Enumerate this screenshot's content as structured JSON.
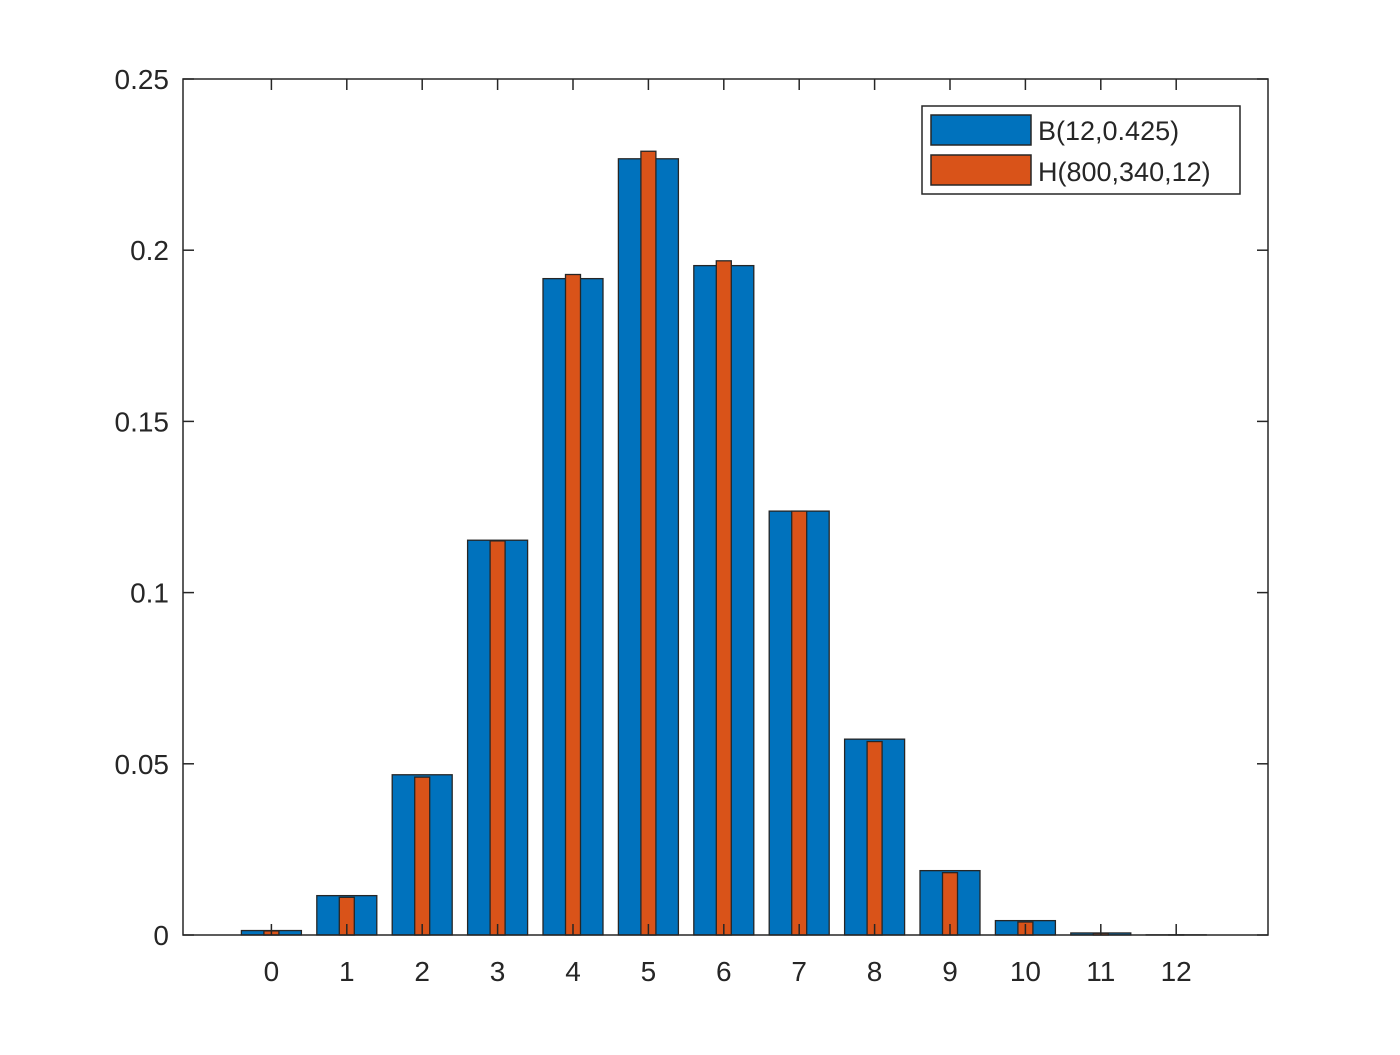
{
  "chart_data": {
    "type": "bar",
    "title": "",
    "xlabel": "",
    "ylabel": "",
    "categories": [
      "0",
      "1",
      "2",
      "3",
      "4",
      "5",
      "6",
      "7",
      "8",
      "9",
      "10",
      "11",
      "12"
    ],
    "ylim": [
      0,
      0.25
    ],
    "yticks": [
      0,
      0.05,
      0.1,
      0.15,
      0.2,
      0.25
    ],
    "ytick_labels": [
      "0",
      "0.05",
      "0.1",
      "0.15",
      "0.2",
      "0.25"
    ],
    "grid": false,
    "legend_position": "top-right",
    "series": [
      {
        "name": "B(12,0.425)",
        "color": "#0072BD",
        "values": [
          0.0013,
          0.0115,
          0.0468,
          0.1153,
          0.1917,
          0.2267,
          0.1955,
          0.1238,
          0.0572,
          0.0188,
          0.0042,
          0.0006,
          4e-05
        ]
      },
      {
        "name": "H(800,340,12)",
        "color": "#D95319",
        "values": [
          0.0012,
          0.011,
          0.0461,
          0.1151,
          0.1929,
          0.2289,
          0.1969,
          0.1238,
          0.0565,
          0.0182,
          0.0038,
          0.0005,
          3e-05
        ]
      }
    ]
  }
}
